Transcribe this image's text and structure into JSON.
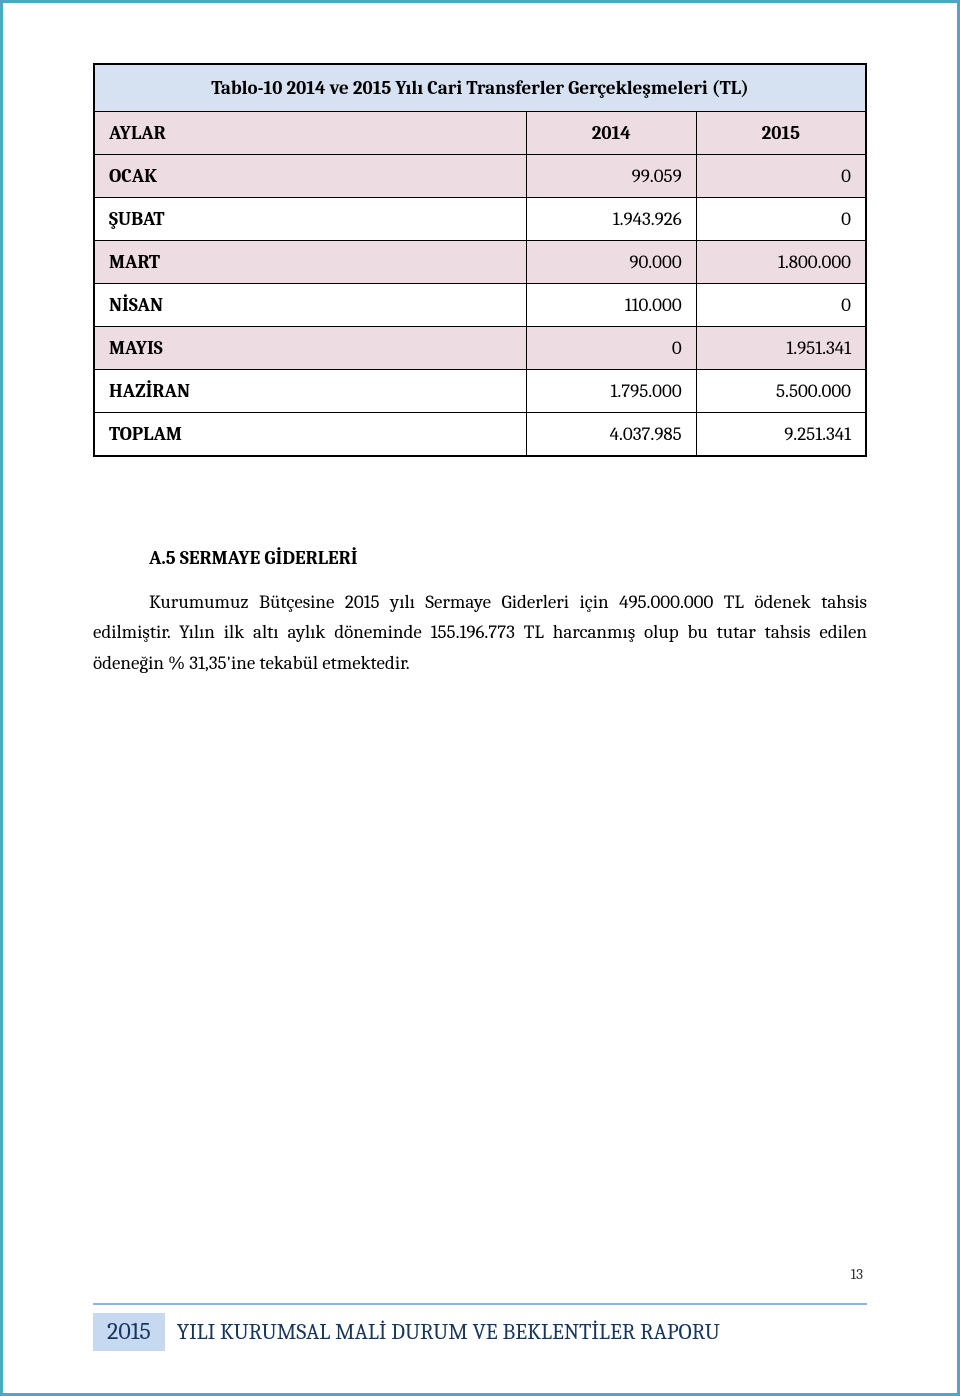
{
  "colors": {
    "page_border": "#4ba9c4",
    "table_border": "#000000",
    "title_bg": "#d6e1f2",
    "alt_bg": "#eedce3",
    "row_bg": "#ffffff",
    "text": "#000000",
    "footer_rule": "#8db3e2",
    "footer_year_bg": "#c6d9f1",
    "footer_text": "#17365d"
  },
  "typography": {
    "body_fontsize_pt": 14,
    "heading_fontsize_pt": 14,
    "footer_year_fontsize_pt": 18,
    "footer_title_fontsize_pt": 16,
    "font_family": "Cambria"
  },
  "table": {
    "type": "table",
    "title": "Tablo-10 2014 ve 2015 Yılı Cari Transferler Gerçekleşmeleri (TL)",
    "columns": [
      "AYLAR",
      "2014",
      "2015"
    ],
    "column_widths_pct": [
      56,
      22,
      22
    ],
    "rows": [
      {
        "label": "OCAK",
        "y2014": "99.059",
        "y2015": "0",
        "alt": true
      },
      {
        "label": "ŞUBAT",
        "y2014": "1.943.926",
        "y2015": "0",
        "alt": false
      },
      {
        "label": "MART",
        "y2014": "90.000",
        "y2015": "1.800.000",
        "alt": true
      },
      {
        "label": "NİSAN",
        "y2014": "110.000",
        "y2015": "0",
        "alt": false
      },
      {
        "label": "MAYIS",
        "y2014": "0",
        "y2015": "1.951.341",
        "alt": true
      },
      {
        "label": "HAZİRAN",
        "y2014": "1.795.000",
        "y2015": "5.500.000",
        "alt": false
      }
    ],
    "total": {
      "label": "TOPLAM",
      "y2014": "4.037.985",
      "y2015": "9.251.341"
    }
  },
  "section": {
    "heading": "A.5   SERMAYE GİDERLERİ",
    "body": "Kurumumuz Bütçesine 2015 yılı Sermaye Giderleri için 495.000.000 TL ödenek tahsis edilmiştir. Yılın ilk altı aylık döneminde 155.196.773 TL harcanmış olup bu tutar tahsis edilen ödeneğin % 31,35'ine tekabül etmektedir."
  },
  "footer": {
    "year": "2015",
    "title": "YILI KURUMSAL MALİ DURUM VE BEKLENTİLER RAPORU",
    "page_number": "13"
  }
}
